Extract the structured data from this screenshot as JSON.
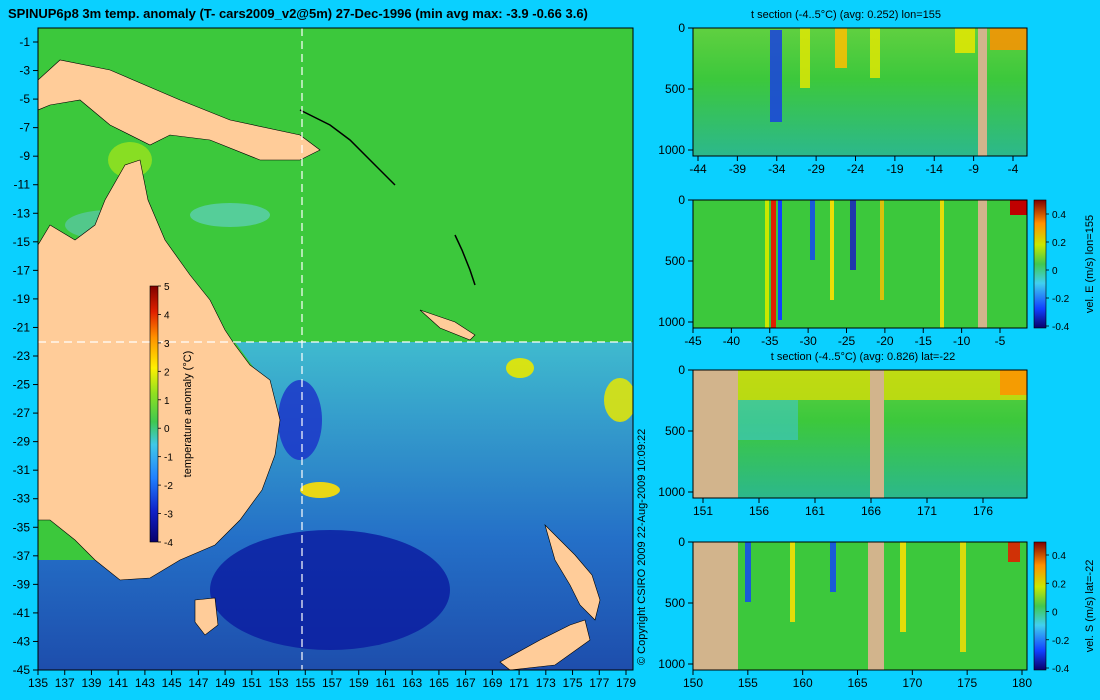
{
  "title": "SPINUP6p8 3m temp. anomaly (T- cars2009_v2@5m) 27-Dec-1996 (min avg max: -3.9 -0.66 3.6)",
  "copyright": "© Copyright CSIRO 2009   22-Aug-2009 10:09:22",
  "colors": {
    "background": "#0ad0ff",
    "land": "#ffcc99",
    "land_section": "#d2b48c",
    "ocean_green": "#3cc83c",
    "crosshair": "#ffffff"
  },
  "chart_data": [
    {
      "type": "heatmap",
      "name": "map",
      "title": "SPINUP6p8 3m temp. anomaly (T- cars2009_v2@5m) 27-Dec-1996 (min avg max: -3.9 -0.66 3.6)",
      "xlim": [
        135,
        180
      ],
      "ylim": [
        -45,
        0
      ],
      "x_ticks": [
        "135",
        "137",
        "139",
        "141",
        "143",
        "145",
        "147",
        "149",
        "151",
        "153",
        "155",
        "157",
        "159",
        "161",
        "163",
        "165",
        "167",
        "169",
        "171",
        "173",
        "175",
        "177",
        "179"
      ],
      "y_ticks": [
        "-1",
        "-3",
        "-5",
        "-7",
        "-9",
        "-11",
        "-13",
        "-15",
        "-17",
        "-19",
        "-21",
        "-23",
        "-25",
        "-27",
        "-29",
        "-31",
        "-33",
        "-35",
        "-37",
        "-39",
        "-41",
        "-43",
        "-45"
      ],
      "crosshair": {
        "lon": 155,
        "lat": -22
      },
      "colorbar": {
        "label": "temperature anomaly (°C)",
        "range": [
          -4,
          5
        ],
        "ticks": [
          "5",
          "4",
          "3",
          "2",
          "1",
          "0",
          "-1",
          "-2",
          "-3",
          "-4"
        ]
      },
      "stats": {
        "min": -3.9,
        "avg": -0.66,
        "max": 3.6
      }
    },
    {
      "type": "heatmap",
      "name": "t-section-lon155",
      "title": "t section (-4..5°C) (avg: 0.252) lon=155",
      "xlim": [
        -45,
        0
      ],
      "ylim": [
        1050,
        0
      ],
      "x_ticks": [
        "-44",
        "-39",
        "-34",
        "-29",
        "-24",
        "-19",
        "-14",
        "-9",
        "-4"
      ],
      "y_ticks": [
        "0",
        "500",
        "1000"
      ],
      "avg": 0.252
    },
    {
      "type": "heatmap",
      "name": "u-section-lon155",
      "title": "",
      "xlim": [
        -45,
        0
      ],
      "ylim": [
        1050,
        0
      ],
      "x_ticks": [
        "-45",
        "-40",
        "-35",
        "-30",
        "-25",
        "-20",
        "-15",
        "-10",
        "-5"
      ],
      "y_ticks": [
        "0",
        "500",
        "1000"
      ],
      "colorbar": {
        "label": "vel. E (m/s) lon=155",
        "range": [
          -0.4,
          0.4
        ],
        "ticks": [
          "0.4",
          "0.2",
          "0",
          "-0.2",
          "-0.4"
        ]
      }
    },
    {
      "type": "heatmap",
      "name": "t-section-lat-22",
      "title": "t section (-4..5°C) (avg: 0.826) lat=-22",
      "xlim": [
        150,
        180
      ],
      "ylim": [
        1050,
        0
      ],
      "x_ticks": [
        "151",
        "156",
        "161",
        "166",
        "171",
        "176"
      ],
      "y_ticks": [
        "0",
        "500",
        "1000"
      ],
      "avg": 0.826
    },
    {
      "type": "heatmap",
      "name": "v-section-lat-22",
      "title": "",
      "xlim": [
        150,
        180
      ],
      "ylim": [
        1050,
        0
      ],
      "x_ticks": [
        "150",
        "155",
        "160",
        "165",
        "170",
        "175",
        "180"
      ],
      "y_ticks": [
        "0",
        "500",
        "1000"
      ],
      "colorbar": {
        "label": "vel. S (m/s) lat=-22",
        "range": [
          -0.4,
          0.4
        ],
        "ticks": [
          "0.4",
          "0.2",
          "0",
          "-0.2",
          "-0.4"
        ]
      }
    }
  ]
}
